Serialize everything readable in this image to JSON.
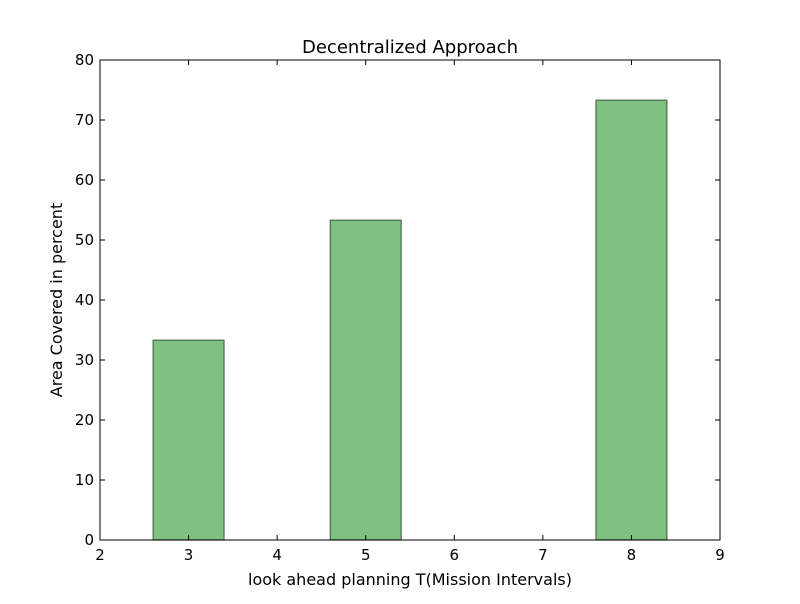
{
  "chart_data": {
    "type": "bar",
    "title": "Decentralized Approach",
    "xlabel": "look ahead planning T(Mission Intervals)",
    "ylabel": "Area Covered in percent",
    "xlim": [
      2,
      9
    ],
    "ylim": [
      0,
      80
    ],
    "xticks": [
      2,
      3,
      4,
      5,
      6,
      7,
      8,
      9
    ],
    "yticks": [
      0,
      10,
      20,
      30,
      40,
      50,
      60,
      70,
      80
    ],
    "categories": [
      3,
      5,
      8
    ],
    "values": [
      33.3,
      53.3,
      73.3
    ],
    "bar_width": 0.8,
    "bar_color": "#80c080",
    "bar_edge_color": "#4a6a4a",
    "grid": false
  }
}
